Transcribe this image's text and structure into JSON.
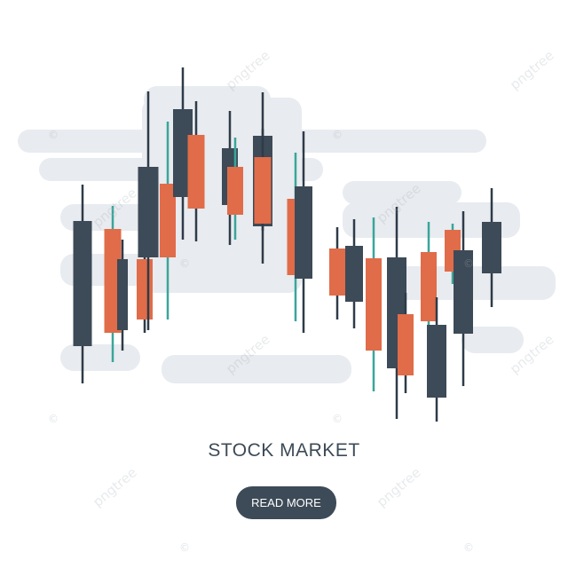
{
  "title": "STOCK MARKET",
  "button_label": "READ MORE",
  "watermark": "pngtree",
  "watermark_symbol": "©",
  "colors": {
    "dark": "#3d4a57",
    "orange": "#e06c49",
    "cloud": "#e8ebef",
    "wick_dark": "#2e3b48",
    "wick_accent": "#3aa59a",
    "button": "#3d4a57"
  }
}
